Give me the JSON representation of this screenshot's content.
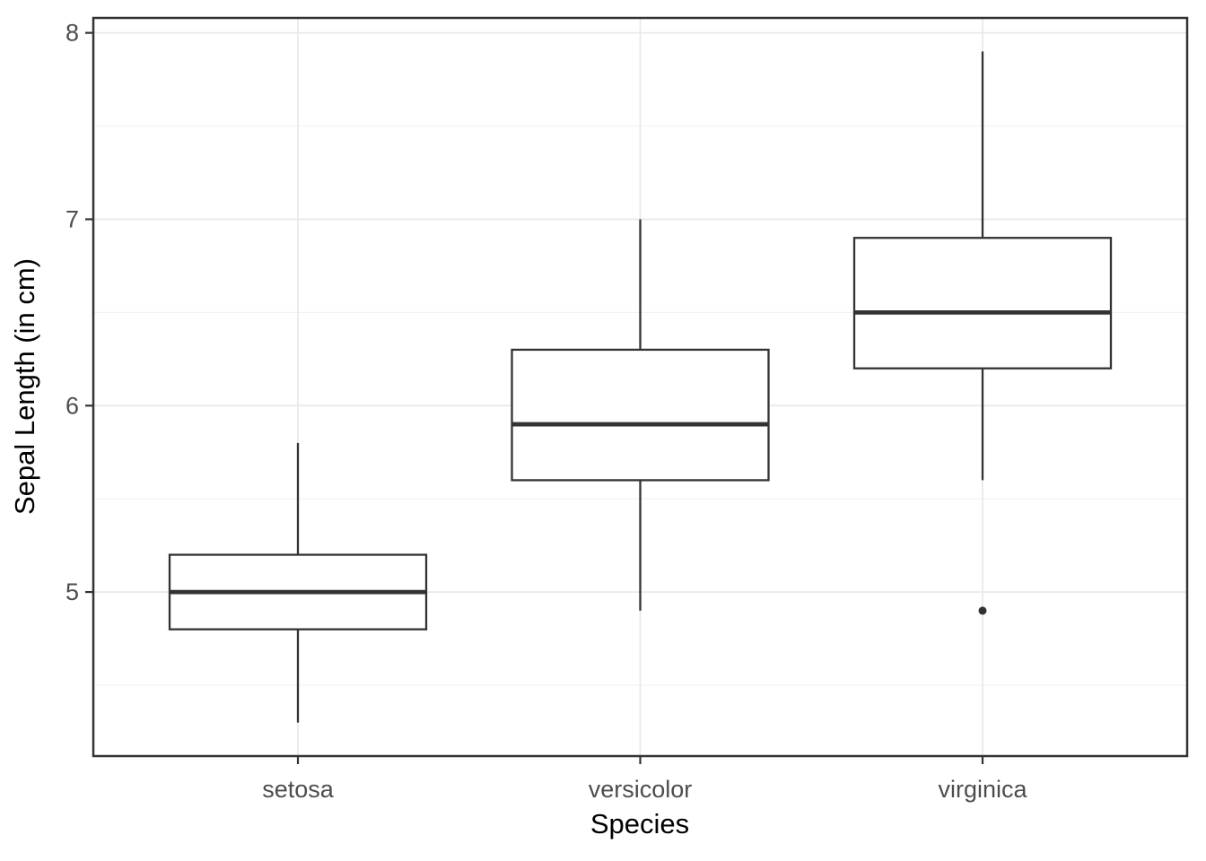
{
  "figure": {
    "background": "#ffffff"
  },
  "chart_data": {
    "type": "boxplot",
    "title": "",
    "xlabel": "Species",
    "ylabel": "Sepal Length (in cm)",
    "categories": [
      "setosa",
      "versicolor",
      "virginica"
    ],
    "series": [
      {
        "name": "setosa",
        "whisker_low": 4.3,
        "q1": 4.8,
        "median": 5.0,
        "q3": 5.2,
        "whisker_high": 5.8,
        "outliers": []
      },
      {
        "name": "versicolor",
        "whisker_low": 4.9,
        "q1": 5.6,
        "median": 5.9,
        "q3": 6.3,
        "whisker_high": 7.0,
        "outliers": []
      },
      {
        "name": "virginica",
        "whisker_low": 5.6,
        "q1": 6.2,
        "median": 6.5,
        "q3": 6.9,
        "whisker_high": 7.9,
        "outliers": [
          4.9
        ]
      }
    ],
    "y_axis": {
      "ticks": [
        5,
        6,
        7,
        8
      ],
      "minor_ticks": [
        4.5,
        5.5,
        6.5,
        7.5
      ],
      "range": [
        4.12,
        8.08
      ]
    },
    "grid": true,
    "legend": false,
    "colors": {
      "box_stroke": "#333333",
      "box_fill": "#ffffff",
      "panel_border": "#333333",
      "grid_major": "#e9e9e9",
      "grid_minor": "#f2f2f2",
      "tick_mark": "#333333",
      "tick_label": "#4d4d4d",
      "axis_title": "#000000",
      "outlier": "#333333",
      "background": "#ffffff"
    }
  }
}
